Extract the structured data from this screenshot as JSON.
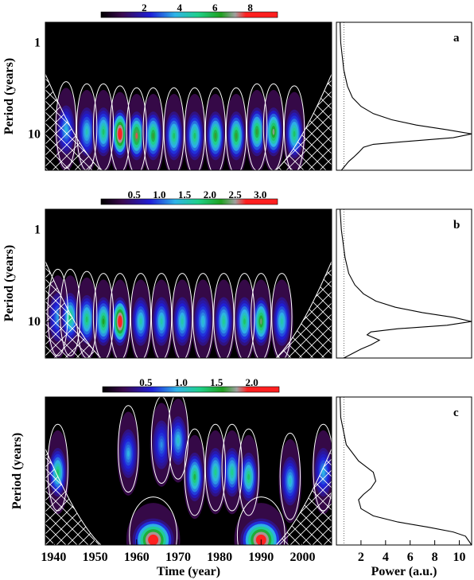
{
  "figure": {
    "x_axis_label": "Time (year)",
    "power_axis_label": "Power (a.u.)",
    "x_ticks": [
      "1940",
      "1950",
      "1960",
      "1970",
      "1980",
      "1990",
      "2000"
    ],
    "power_ticks": [
      "2",
      "4",
      "6",
      "8",
      "10"
    ]
  },
  "chart_data": [
    {
      "type": "heatmap",
      "panel": "a",
      "ylabel": "Period (years)",
      "y_ticks": [
        "1",
        "10"
      ],
      "colorbar_ticks": [
        "2",
        "4",
        "6",
        "8"
      ],
      "xlim": [
        1938,
        2007
      ],
      "ylim_period": [
        0.6,
        25
      ],
      "y_scale": "log",
      "blobs": [
        {
          "year": 1943,
          "period": 9.0,
          "amp": 2.5
        },
        {
          "year": 1948,
          "period": 9.5,
          "amp": 3.0
        },
        {
          "year": 1952,
          "period": 9.5,
          "amp": 4.0
        },
        {
          "year": 1956,
          "period": 10.0,
          "amp": 8.0
        },
        {
          "year": 1960,
          "period": 10.5,
          "amp": 6.0
        },
        {
          "year": 1964,
          "period": 10.5,
          "amp": 5.0
        },
        {
          "year": 1969,
          "period": 10.5,
          "amp": 4.0
        },
        {
          "year": 1974,
          "period": 10.5,
          "amp": 4.0
        },
        {
          "year": 1979,
          "period": 10.5,
          "amp": 5.0
        },
        {
          "year": 1984,
          "period": 10.5,
          "amp": 5.0
        },
        {
          "year": 1989,
          "period": 9.5,
          "amp": 5.0
        },
        {
          "year": 1993,
          "period": 9.5,
          "amp": 5.5
        },
        {
          "year": 1998,
          "period": 10.0,
          "amp": 4.0
        }
      ],
      "side_spectrum": {
        "xlim": [
          0,
          11
        ],
        "period": [
          0.6,
          1,
          2,
          3,
          4,
          5,
          6,
          7,
          8,
          9,
          10,
          11,
          12,
          13,
          14,
          16,
          18,
          20,
          25
        ],
        "power": [
          0.3,
          0.35,
          0.6,
          0.9,
          1.3,
          2.0,
          3.0,
          4.5,
          6.5,
          9.0,
          11.0,
          9.5,
          6.0,
          3.0,
          2.2,
          1.8,
          1.4,
          1.0,
          0.4
        ]
      }
    },
    {
      "type": "heatmap",
      "panel": "b",
      "ylabel": "Period (years)",
      "y_ticks": [
        "1",
        "10"
      ],
      "colorbar_ticks": [
        "0.5",
        "1.0",
        "1.5",
        "2.0",
        "2.5",
        "3.0"
      ],
      "xlim": [
        1938,
        2007
      ],
      "ylim_period": [
        0.6,
        25
      ],
      "y_scale": "log",
      "blobs": [
        {
          "year": 1941,
          "period": 9.0,
          "amp": 0.8
        },
        {
          "year": 1944,
          "period": 9.0,
          "amp": 1.5
        },
        {
          "year": 1948,
          "period": 9.5,
          "amp": 1.5
        },
        {
          "year": 1952,
          "period": 10.0,
          "amp": 1.8
        },
        {
          "year": 1956,
          "period": 10.0,
          "amp": 3.0
        },
        {
          "year": 1961,
          "period": 10.0,
          "amp": 1.2
        },
        {
          "year": 1966,
          "period": 10.0,
          "amp": 1.2
        },
        {
          "year": 1971,
          "period": 10.0,
          "amp": 1.2
        },
        {
          "year": 1976,
          "period": 10.0,
          "amp": 1.0
        },
        {
          "year": 1981,
          "period": 10.0,
          "amp": 1.3
        },
        {
          "year": 1986,
          "period": 10.0,
          "amp": 1.5
        },
        {
          "year": 1990,
          "period": 10.0,
          "amp": 2.0
        },
        {
          "year": 1995,
          "period": 10.0,
          "amp": 1.2
        }
      ],
      "side_spectrum": {
        "xlim": [
          0,
          11
        ],
        "period": [
          0.6,
          1,
          2,
          3,
          4,
          5,
          6,
          7,
          8,
          9,
          10,
          11,
          12,
          13,
          14,
          16,
          18,
          20,
          25
        ],
        "power": [
          0.3,
          0.4,
          0.7,
          1.0,
          1.5,
          2.2,
          3.2,
          4.8,
          7.0,
          9.5,
          11.0,
          9.0,
          5.0,
          2.8,
          2.5,
          3.5,
          2.8,
          2.0,
          0.6
        ]
      }
    },
    {
      "type": "heatmap",
      "panel": "c",
      "ylabel": "Period (years)",
      "y_ticks": [],
      "colorbar_ticks": [
        "0.5",
        "1.0",
        "1.5",
        "2.0"
      ],
      "xlim": [
        1938,
        2007
      ],
      "ylim_period": [
        0.6,
        25
      ],
      "y_scale": "log",
      "blobs": [
        {
          "year": 1941,
          "period": 4.0,
          "amp": 1.0
        },
        {
          "year": 1958,
          "period": 2.5,
          "amp": 0.6
        },
        {
          "year": 1966,
          "period": 2.0,
          "amp": 0.5
        },
        {
          "year": 1970,
          "period": 1.8,
          "amp": 0.7
        },
        {
          "year": 1974,
          "period": 4.5,
          "amp": 1.1
        },
        {
          "year": 1979,
          "period": 4.0,
          "amp": 0.9
        },
        {
          "year": 1983,
          "period": 4.0,
          "amp": 0.9
        },
        {
          "year": 1987,
          "period": 4.5,
          "amp": 1.0
        },
        {
          "year": 1997,
          "period": 5.0,
          "amp": 0.7
        },
        {
          "year": 2005,
          "period": 4.0,
          "amp": 0.6
        },
        {
          "year": 1964,
          "period": 22.0,
          "amp": 2.0
        },
        {
          "year": 1990,
          "period": 22.0,
          "amp": 2.0
        }
      ],
      "side_spectrum": {
        "xlim": [
          0,
          11
        ],
        "period": [
          0.6,
          1,
          2,
          3,
          4,
          5,
          6,
          7,
          8,
          10,
          12,
          14,
          16,
          18,
          20,
          25
        ],
        "power": [
          0.3,
          0.35,
          0.8,
          1.8,
          3.0,
          3.2,
          2.8,
          2.2,
          1.8,
          2.0,
          3.0,
          5.0,
          7.5,
          9.5,
          10.5,
          11.0
        ]
      }
    }
  ]
}
